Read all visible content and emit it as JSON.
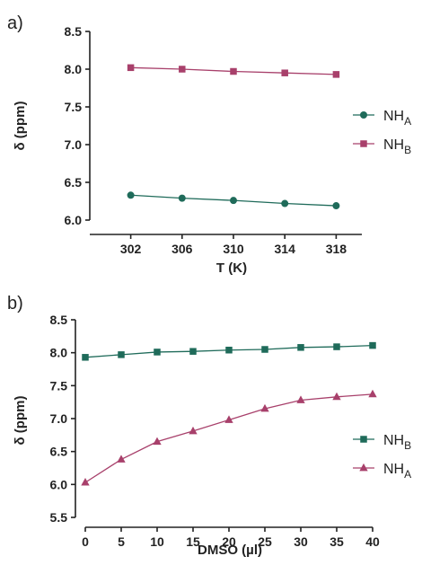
{
  "chart_data": [
    {
      "type": "line",
      "panel_label": "a)",
      "title": "",
      "xlabel": "T (K)",
      "ylabel": "δ (ppm)",
      "xlim": [
        300,
        320
      ],
      "ylim": [
        6.0,
        8.5
      ],
      "x_ticks": [
        302,
        306,
        310,
        314,
        318
      ],
      "y_ticks": [
        6.0,
        6.5,
        7.0,
        7.5,
        8.0,
        8.5
      ],
      "x_tick_labels": [
        "302",
        "306",
        "310",
        "314",
        "318"
      ],
      "y_tick_labels": [
        "6.0",
        "6.5",
        "7.0",
        "7.5",
        "8.0",
        "8.5"
      ],
      "grid": false,
      "legend": "right",
      "x": [
        302,
        306,
        310,
        314,
        318
      ],
      "series": [
        {
          "name_main": "NH",
          "name_sub": "A",
          "marker": "circle",
          "color": "#1f6b5a",
          "values": [
            6.33,
            6.29,
            6.26,
            6.22,
            6.19
          ]
        },
        {
          "name_main": "NH",
          "name_sub": "B",
          "marker": "square",
          "color": "#a8406b",
          "values": [
            8.02,
            8.0,
            7.97,
            7.95,
            7.93
          ]
        }
      ]
    },
    {
      "type": "line",
      "panel_label": "b)",
      "title": "",
      "xlabel": "DMSO (µl)",
      "ylabel": "δ (ppm)",
      "xlim": [
        0,
        40
      ],
      "ylim": [
        5.5,
        8.5
      ],
      "x_ticks": [
        0,
        5,
        10,
        15,
        20,
        25,
        30,
        35,
        40
      ],
      "y_ticks": [
        5.5,
        6.0,
        6.5,
        7.0,
        7.5,
        8.0,
        8.5
      ],
      "x_tick_labels": [
        "0",
        "5",
        "10",
        "15",
        "20",
        "25",
        "30",
        "35",
        "40"
      ],
      "y_tick_labels": [
        "5.5",
        "6.0",
        "6.5",
        "7.0",
        "7.5",
        "8.0",
        "8.5"
      ],
      "grid": false,
      "legend": "right",
      "x": [
        0,
        5,
        10,
        15,
        20,
        25,
        30,
        35,
        40
      ],
      "series": [
        {
          "name_main": "NH",
          "name_sub": "B",
          "marker": "square",
          "color": "#1f6b5a",
          "values": [
            7.93,
            7.97,
            8.01,
            8.02,
            8.04,
            8.05,
            8.08,
            8.09,
            8.11
          ]
        },
        {
          "name_main": "NH",
          "name_sub": "A",
          "marker": "triangle",
          "color": "#a8406b",
          "values": [
            6.03,
            6.38,
            6.65,
            6.81,
            6.98,
            7.15,
            7.28,
            7.33,
            7.37
          ]
        }
      ]
    }
  ]
}
